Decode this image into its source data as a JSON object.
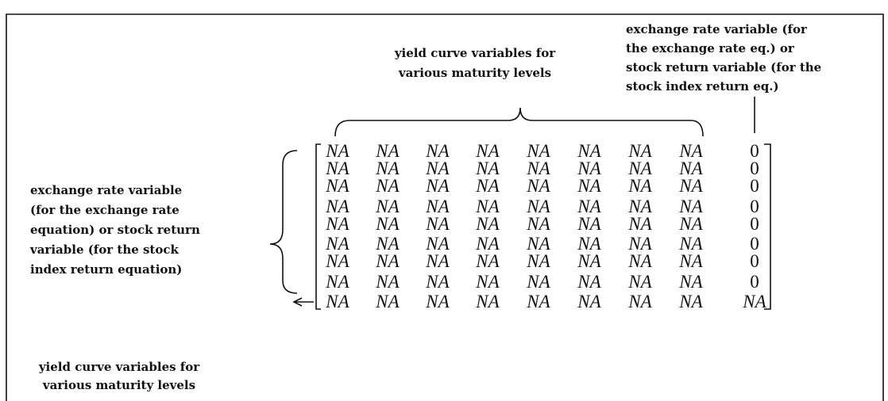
{
  "labels": {
    "top_left": [
      "yield curve variables for",
      "various maturity levels"
    ],
    "top_right": [
      "exchange rate variable (for",
      "the exchange rate eq.) or",
      "stock return variable (for the",
      "stock index return eq.)"
    ],
    "left": [
      "exchange rate variable",
      "(for the exchange rate",
      "equation) or stock return",
      "variable (for the stock",
      "index return equation)"
    ],
    "bottom_left": [
      "yield curve variables for",
      "various maturity levels"
    ]
  },
  "matrix": {
    "rows": [
      [
        "NA",
        "NA",
        "NA",
        "NA",
        "NA",
        "NA",
        "NA",
        "NA",
        "0"
      ],
      [
        "NA",
        "NA",
        "NA",
        "NA",
        "NA",
        "NA",
        "NA",
        "NA",
        "0"
      ],
      [
        "NA",
        "NA",
        "NA",
        "NA",
        "NA",
        "NA",
        "NA",
        "NA",
        "0"
      ],
      [
        "NA",
        "NA",
        "NA",
        "NA",
        "NA",
        "NA",
        "NA",
        "NA",
        "0"
      ],
      [
        "NA",
        "NA",
        "NA",
        "NA",
        "NA",
        "NA",
        "NA",
        "NA",
        "0"
      ],
      [
        "NA",
        "NA",
        "NA",
        "NA",
        "NA",
        "NA",
        "NA",
        "NA",
        "0"
      ],
      [
        "NA",
        "NA",
        "NA",
        "NA",
        "NA",
        "NA",
        "NA",
        "NA",
        "0"
      ],
      [
        "NA",
        "NA",
        "NA",
        "NA",
        "NA",
        "NA",
        "NA",
        "NA",
        "0"
      ],
      [
        "NA",
        "NA",
        "NA",
        "NA",
        "NA",
        "NA",
        "NA",
        "NA",
        "NA"
      ]
    ]
  }
}
